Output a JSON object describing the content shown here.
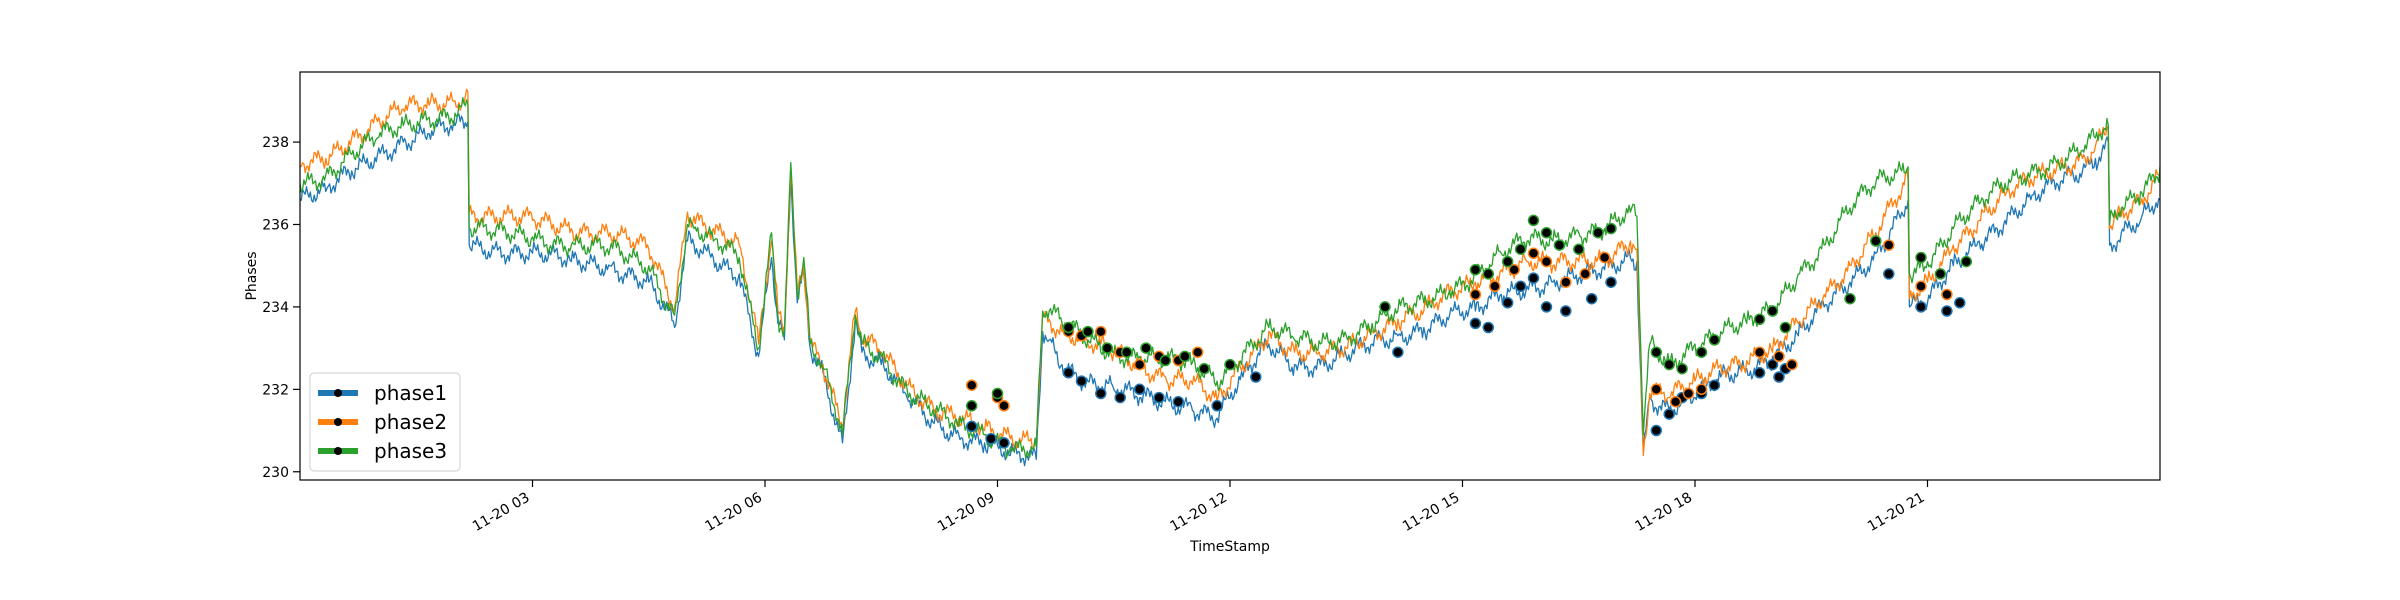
{
  "chart_data": {
    "type": "line",
    "xlabel": "TimeStamp",
    "ylabel": "Phases",
    "xlim": [
      "11-20 00:00",
      "11-21 00:00"
    ],
    "ylim": [
      229.8,
      239.7
    ],
    "grid": false,
    "legend_position": "lower-left",
    "x_ticks": [
      {
        "hour": 3,
        "label": "11-20 03"
      },
      {
        "hour": 6,
        "label": "11-20 06"
      },
      {
        "hour": 9,
        "label": "11-20 09"
      },
      {
        "hour": 12,
        "label": "11-20 12"
      },
      {
        "hour": 15,
        "label": "11-20 15"
      },
      {
        "hour": 18,
        "label": "11-20 18"
      },
      {
        "hour": 21,
        "label": "11-20 21"
      }
    ],
    "y_ticks": [
      {
        "value": 230,
        "label": "230"
      },
      {
        "value": 232,
        "label": "232"
      },
      {
        "value": 234,
        "label": "234"
      },
      {
        "value": 236,
        "label": "236"
      },
      {
        "value": 238,
        "label": "238"
      }
    ],
    "series": [
      {
        "name": "phase1",
        "color": "#1f77b4",
        "x": [
          "00:00",
          "00:20",
          "00:40",
          "01:00",
          "01:20",
          "01:40",
          "02:00",
          "02:10",
          "02:11",
          "02:30",
          "03:00",
          "03:30",
          "04:00",
          "04:30",
          "04:50",
          "05:00",
          "05:05",
          "05:20",
          "05:40",
          "05:55",
          "06:05",
          "06:10",
          "06:15",
          "06:20",
          "06:25",
          "06:30",
          "06:35",
          "06:45",
          "07:00",
          "07:10",
          "07:15",
          "07:30",
          "07:50",
          "08:10",
          "08:30",
          "08:50",
          "09:10",
          "09:30",
          "09:35",
          "09:40",
          "09:50",
          "10:10",
          "10:30",
          "10:50",
          "11:10",
          "11:30",
          "11:50",
          "12:10",
          "12:30",
          "12:50",
          "13:10",
          "13:30",
          "13:50",
          "14:10",
          "14:30",
          "14:50",
          "15:10",
          "15:30",
          "15:50",
          "16:10",
          "16:30",
          "16:50",
          "17:10",
          "17:15",
          "17:20",
          "17:25",
          "17:40",
          "18:00",
          "18:20",
          "18:40",
          "19:00",
          "19:20",
          "19:40",
          "20:00",
          "20:20",
          "20:40",
          "20:45",
          "20:46",
          "21:00",
          "21:20",
          "21:40",
          "22:00",
          "22:20",
          "22:40",
          "23:00",
          "23:10",
          "23:20",
          "23:21",
          "23:30",
          "23:45",
          "24:00"
        ],
        "y": [
          236.6,
          236.8,
          237.3,
          237.7,
          238.0,
          238.2,
          238.4,
          238.5,
          235.5,
          235.4,
          235.3,
          235.1,
          235.0,
          234.6,
          233.5,
          235.6,
          235.5,
          235.2,
          234.8,
          232.8,
          235.2,
          233.6,
          233.2,
          237.1,
          234.1,
          234.8,
          233.0,
          232.4,
          230.7,
          233.7,
          232.9,
          232.6,
          231.8,
          231.2,
          230.9,
          230.7,
          230.4,
          230.3,
          233.4,
          233.2,
          232.6,
          232.2,
          232.0,
          231.8,
          231.7,
          231.6,
          231.3,
          232.3,
          233.1,
          232.6,
          232.6,
          232.8,
          233.1,
          233.3,
          233.5,
          233.8,
          233.9,
          234.3,
          234.5,
          234.6,
          234.7,
          234.9,
          235.2,
          235.1,
          230.5,
          231.8,
          231.5,
          231.8,
          232.3,
          232.5,
          232.8,
          233.3,
          234.0,
          234.6,
          235.3,
          236.3,
          236.6,
          234.0,
          234.1,
          235.0,
          235.6,
          236.1,
          236.6,
          237.0,
          237.3,
          237.6,
          238.0,
          235.5,
          235.8,
          236.1,
          236.6
        ]
      },
      {
        "name": "phase2",
        "color": "#ff7f0e",
        "x": [
          "00:00",
          "00:20",
          "00:40",
          "01:00",
          "01:20",
          "01:40",
          "02:00",
          "02:10",
          "02:11",
          "02:30",
          "03:00",
          "03:30",
          "04:00",
          "04:30",
          "04:50",
          "05:00",
          "05:05",
          "05:20",
          "05:40",
          "05:55",
          "06:05",
          "06:10",
          "06:15",
          "06:20",
          "06:25",
          "06:30",
          "06:35",
          "06:45",
          "07:00",
          "07:10",
          "07:15",
          "07:30",
          "07:50",
          "08:10",
          "08:30",
          "08:50",
          "09:10",
          "09:30",
          "09:35",
          "09:40",
          "09:50",
          "10:10",
          "10:30",
          "10:50",
          "11:10",
          "11:30",
          "11:50",
          "12:10",
          "12:30",
          "12:50",
          "13:10",
          "13:30",
          "13:50",
          "14:10",
          "14:30",
          "14:50",
          "15:10",
          "15:30",
          "15:50",
          "16:10",
          "16:30",
          "16:50",
          "17:10",
          "17:15",
          "17:20",
          "17:25",
          "17:40",
          "18:00",
          "18:20",
          "18:40",
          "19:00",
          "19:20",
          "19:40",
          "20:00",
          "20:20",
          "20:40",
          "20:45",
          "20:46",
          "21:00",
          "21:20",
          "21:40",
          "22:00",
          "22:20",
          "22:40",
          "23:00",
          "23:10",
          "23:20",
          "23:21",
          "23:30",
          "23:45",
          "24:00"
        ],
        "y": [
          237.4,
          237.6,
          238.1,
          238.5,
          238.8,
          238.9,
          239.0,
          239.2,
          236.3,
          236.2,
          236.1,
          235.9,
          235.8,
          235.4,
          234.0,
          236.3,
          236.2,
          235.9,
          235.5,
          233.1,
          235.6,
          233.9,
          233.5,
          237.3,
          234.4,
          235.1,
          233.2,
          232.6,
          231.1,
          233.9,
          233.2,
          232.9,
          232.1,
          231.6,
          231.3,
          231.0,
          230.8,
          230.8,
          233.8,
          233.7,
          233.4,
          233.1,
          232.9,
          232.6,
          232.3,
          232.2,
          231.7,
          232.6,
          233.4,
          232.9,
          232.8,
          233.0,
          233.4,
          233.7,
          233.9,
          234.3,
          234.6,
          234.9,
          235.1,
          235.0,
          235.1,
          235.2,
          235.6,
          235.4,
          230.4,
          231.9,
          231.8,
          232.2,
          232.6,
          232.7,
          232.9,
          233.6,
          234.3,
          235.0,
          235.8,
          236.8,
          237.1,
          234.2,
          234.6,
          235.5,
          236.1,
          236.7,
          237.1,
          237.4,
          237.6,
          237.9,
          238.4,
          235.9,
          236.2,
          236.5,
          237.2
        ]
      },
      {
        "name": "phase3",
        "color": "#2ca02c",
        "x": [
          "00:00",
          "00:20",
          "00:40",
          "01:00",
          "01:20",
          "01:40",
          "02:00",
          "02:10",
          "02:11",
          "02:30",
          "03:00",
          "03:30",
          "04:00",
          "04:30",
          "04:50",
          "05:00",
          "05:05",
          "05:20",
          "05:40",
          "05:55",
          "06:05",
          "06:10",
          "06:15",
          "06:20",
          "06:25",
          "06:30",
          "06:35",
          "06:45",
          "07:00",
          "07:10",
          "07:15",
          "07:30",
          "07:50",
          "08:10",
          "08:30",
          "08:50",
          "09:10",
          "09:30",
          "09:35",
          "09:40",
          "09:50",
          "10:10",
          "10:30",
          "10:50",
          "11:10",
          "11:30",
          "11:50",
          "12:10",
          "12:30",
          "12:50",
          "13:10",
          "13:30",
          "13:50",
          "14:10",
          "14:30",
          "14:50",
          "15:10",
          "15:30",
          "15:50",
          "16:10",
          "16:30",
          "16:50",
          "17:10",
          "17:15",
          "17:20",
          "17:25",
          "17:40",
          "18:00",
          "18:20",
          "18:40",
          "19:00",
          "19:20",
          "19:40",
          "20:00",
          "20:20",
          "20:40",
          "20:45",
          "20:46",
          "21:00",
          "21:20",
          "21:40",
          "22:00",
          "22:20",
          "22:40",
          "23:00",
          "23:10",
          "23:20",
          "23:21",
          "23:30",
          "23:45",
          "24:00"
        ],
        "y": [
          237.0,
          237.2,
          237.7,
          238.1,
          238.4,
          238.6,
          238.7,
          238.9,
          235.9,
          235.8,
          235.7,
          235.5,
          235.4,
          235.0,
          233.8,
          236.0,
          235.9,
          235.6,
          235.2,
          233.0,
          235.8,
          233.8,
          233.4,
          237.5,
          234.3,
          235.2,
          233.1,
          232.5,
          230.9,
          233.8,
          233.1,
          232.8,
          232.0,
          231.5,
          231.1,
          230.9,
          230.6,
          230.6,
          233.9,
          233.9,
          233.6,
          233.2,
          232.9,
          232.8,
          232.7,
          232.6,
          232.2,
          232.9,
          233.5,
          233.2,
          233.1,
          233.3,
          233.6,
          233.9,
          234.1,
          234.4,
          234.8,
          235.3,
          235.6,
          235.6,
          235.8,
          235.9,
          236.3,
          236.2,
          230.9,
          233.1,
          232.6,
          233.1,
          233.4,
          233.6,
          233.9,
          234.8,
          235.5,
          236.4,
          237.0,
          237.3,
          237.4,
          234.8,
          235.1,
          235.9,
          236.5,
          237.0,
          237.3,
          237.5,
          237.8,
          238.1,
          238.4,
          236.0,
          236.4,
          236.8,
          237.4
        ]
      }
    ],
    "markers": [
      {
        "series": "phase1",
        "color": "#1f77b4",
        "x": [
          "08:40",
          "08:55",
          "09:05",
          "09:55",
          "10:05",
          "10:20",
          "10:35",
          "10:50",
          "11:05",
          "11:20",
          "11:50",
          "12:20",
          "14:10",
          "15:10",
          "15:20",
          "15:35",
          "15:45",
          "15:55",
          "16:05",
          "16:20",
          "16:40",
          "16:55",
          "17:30",
          "17:40",
          "17:50",
          "18:05",
          "18:15",
          "18:50",
          "19:00",
          "19:05",
          "19:10",
          "20:30",
          "20:55",
          "21:15",
          "21:25"
        ],
        "y": [
          231.1,
          230.8,
          230.7,
          232.4,
          232.2,
          231.9,
          231.8,
          232.0,
          231.8,
          231.7,
          231.6,
          232.3,
          232.9,
          233.6,
          233.5,
          234.1,
          234.5,
          234.7,
          234.0,
          233.9,
          234.2,
          234.6,
          231.0,
          231.4,
          231.8,
          231.9,
          232.1,
          232.4,
          232.6,
          232.3,
          232.5,
          234.8,
          234.0,
          233.9,
          234.1
        ]
      },
      {
        "series": "phase2",
        "color": "#ff7f0e",
        "x": [
          "08:40",
          "09:00",
          "09:05",
          "09:55",
          "10:05",
          "10:20",
          "10:35",
          "10:50",
          "11:05",
          "11:20",
          "11:35",
          "15:10",
          "15:25",
          "15:40",
          "15:55",
          "16:05",
          "16:20",
          "16:35",
          "16:50",
          "17:30",
          "17:45",
          "17:55",
          "18:05",
          "18:50",
          "19:05",
          "19:15",
          "20:30",
          "20:55",
          "21:15"
        ],
        "y": [
          232.1,
          231.8,
          231.6,
          233.4,
          233.3,
          233.4,
          232.9,
          232.6,
          232.8,
          232.7,
          232.9,
          234.3,
          234.5,
          234.9,
          235.3,
          235.1,
          234.6,
          234.8,
          235.2,
          232.0,
          231.7,
          231.9,
          232.0,
          232.9,
          232.8,
          232.6,
          235.5,
          234.5,
          234.3
        ]
      },
      {
        "series": "phase3",
        "color": "#2ca02c",
        "x": [
          "08:40",
          "09:00",
          "09:55",
          "10:10",
          "10:25",
          "10:40",
          "10:55",
          "11:10",
          "11:25",
          "11:40",
          "12:00",
          "14:00",
          "15:10",
          "15:20",
          "15:35",
          "15:45",
          "15:55",
          "16:05",
          "16:15",
          "16:30",
          "16:45",
          "16:55",
          "17:30",
          "17:40",
          "17:50",
          "18:05",
          "18:15",
          "18:50",
          "19:00",
          "19:10",
          "20:00",
          "20:20",
          "20:55",
          "21:10",
          "21:30"
        ],
        "y": [
          231.6,
          231.9,
          233.5,
          233.4,
          233.0,
          232.9,
          233.0,
          232.7,
          232.8,
          232.5,
          232.6,
          234.0,
          234.9,
          234.8,
          235.1,
          235.4,
          236.1,
          235.8,
          235.5,
          235.4,
          235.8,
          235.9,
          232.9,
          232.6,
          232.5,
          232.9,
          233.2,
          233.7,
          233.9,
          233.5,
          234.2,
          235.6,
          235.2,
          234.8,
          235.1
        ]
      }
    ]
  }
}
